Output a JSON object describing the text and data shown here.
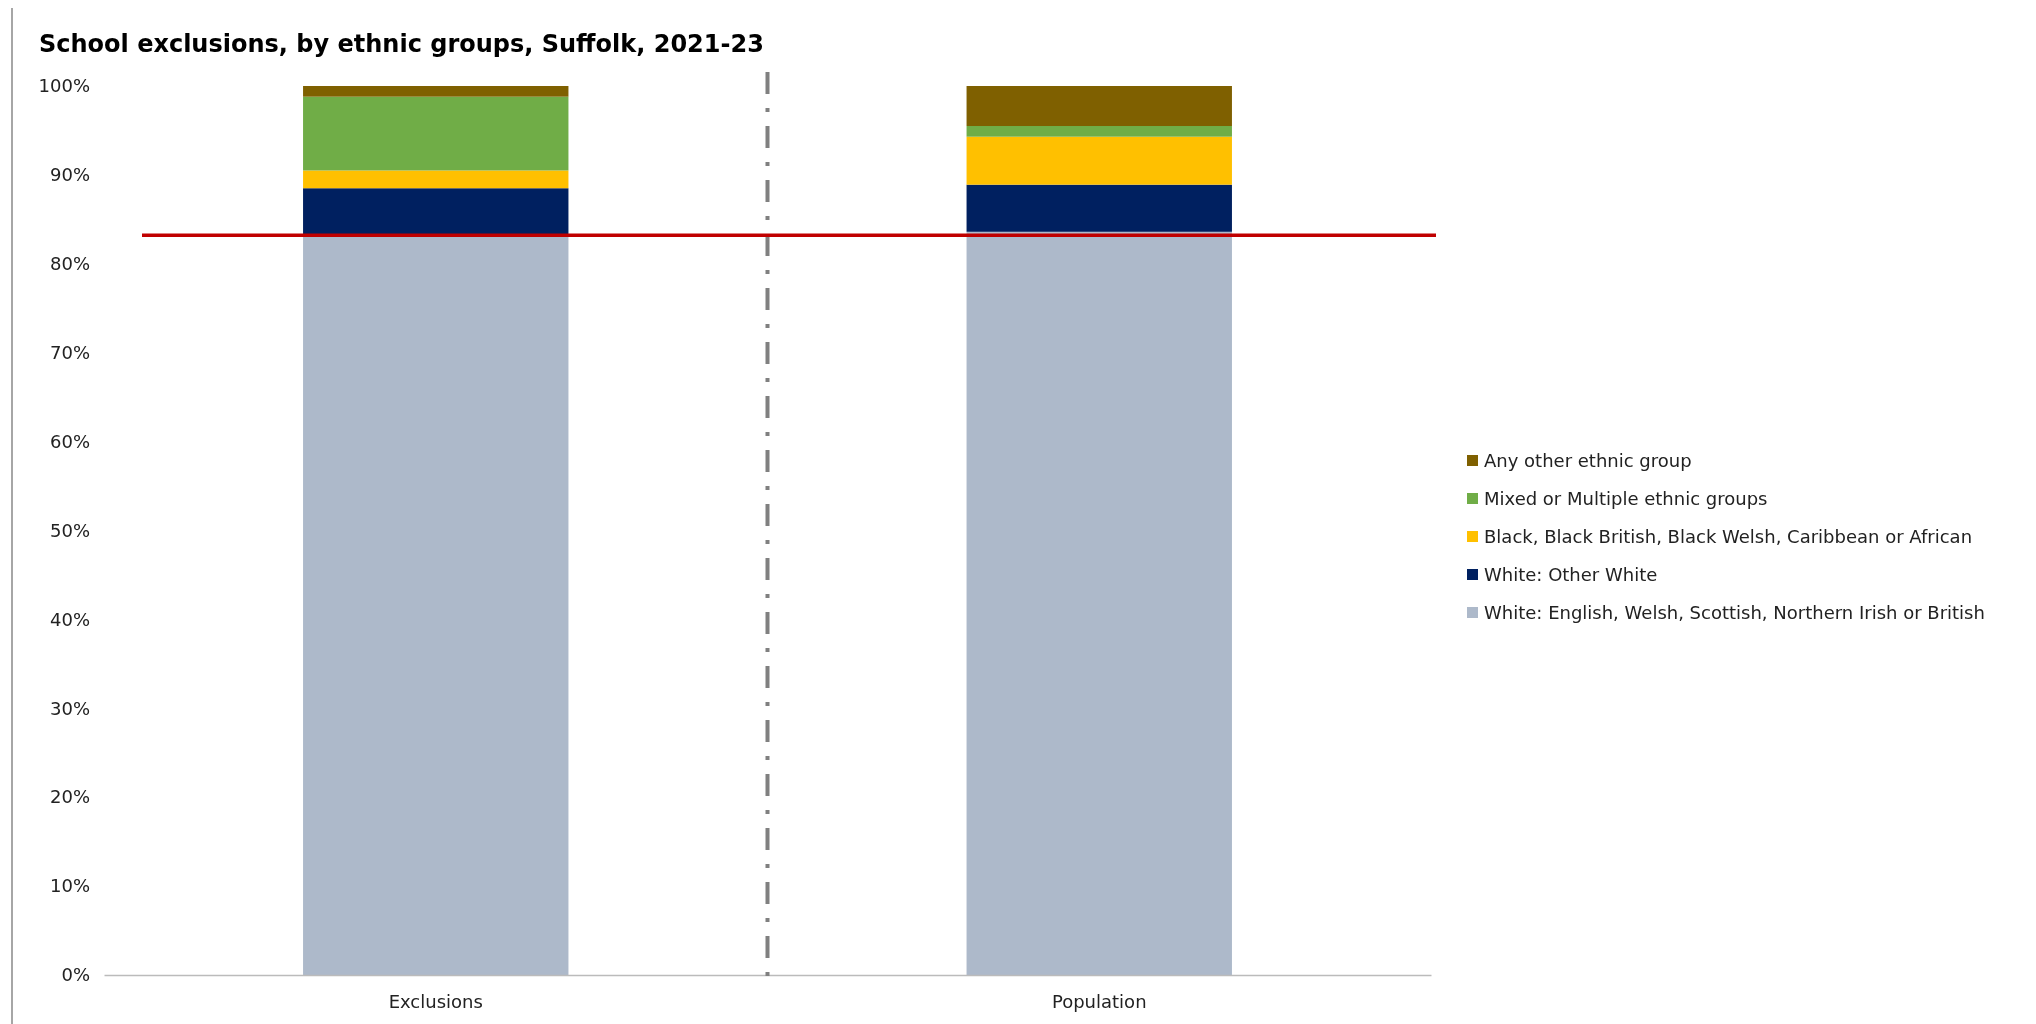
{
  "chart_data": {
    "type": "bar",
    "title": "School exclusions, by ethnic groups, Suffolk, 2021-23",
    "categories": [
      "Exclusions",
      "Population"
    ],
    "stacked": true,
    "series": [
      {
        "name": "White: English, Welsh, Scottish, Northern Irish or British",
        "color": "#adb9ca",
        "values": [
          83.2,
          83.6
        ]
      },
      {
        "name": "White: Other White",
        "color": "#002060",
        "values": [
          5.3,
          5.3
        ]
      },
      {
        "name": "Black, Black British, Black Welsh, Caribbean or African",
        "color": "#ffc000",
        "values": [
          2.0,
          5.4
        ]
      },
      {
        "name": "Mixed or Multiple ethnic groups",
        "color": "#70ad47",
        "values": [
          8.3,
          1.2
        ]
      },
      {
        "name": "Any other ethnic group",
        "color": "#7f6000",
        "values": [
          1.2,
          4.5
        ]
      }
    ],
    "ylim": [
      0,
      100
    ],
    "yticks": [
      {
        "value": 0,
        "label": "0%"
      },
      {
        "value": 10,
        "label": "10%"
      },
      {
        "value": 20,
        "label": "20%"
      },
      {
        "value": 30,
        "label": "30%"
      },
      {
        "value": 40,
        "label": "40%"
      },
      {
        "value": 50,
        "label": "50%"
      },
      {
        "value": 60,
        "label": "60%"
      },
      {
        "value": 70,
        "label": "70%"
      },
      {
        "value": 80,
        "label": "80%"
      },
      {
        "value": 90,
        "label": "90%"
      },
      {
        "value": 100,
        "label": "100%"
      }
    ],
    "ref_lines": [
      {
        "axis": "y",
        "value": 83.2,
        "color": "#c00000",
        "line_style": "solid"
      }
    ],
    "grid": false,
    "legend": "right"
  }
}
